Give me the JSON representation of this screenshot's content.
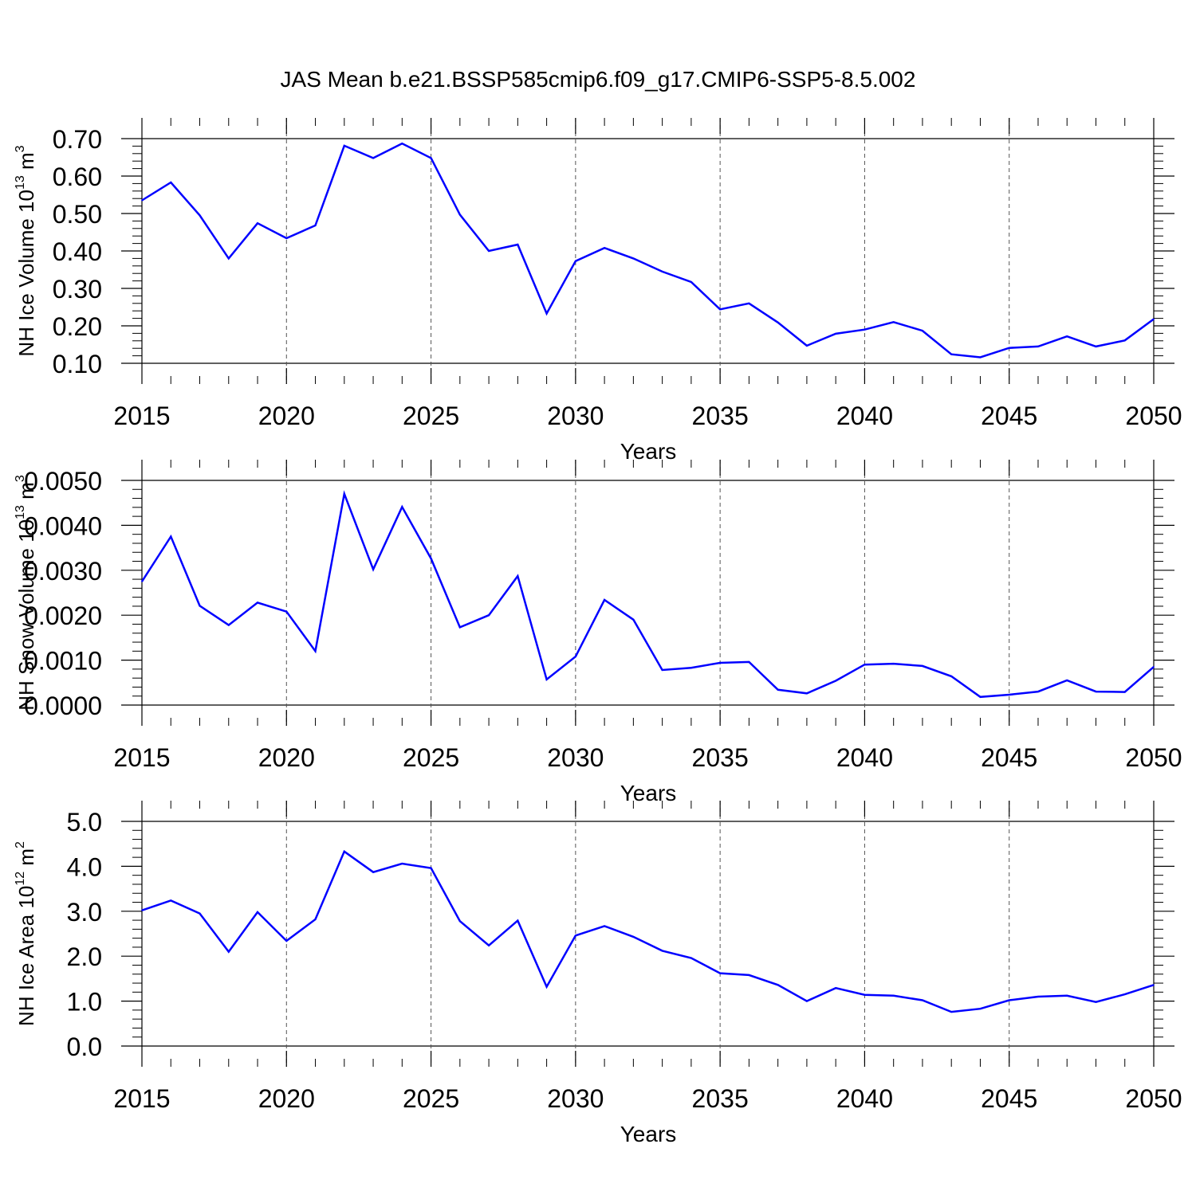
{
  "title": "JAS Mean b.e21.BSSP585cmip6.f09_g17.CMIP6-SSP5-8.5.002",
  "colors": {
    "line": "#0000ff",
    "axes": "#000000",
    "grid": "#555555"
  },
  "chart_data": [
    {
      "type": "line",
      "xlabel": "Years",
      "ylabel": "NH Ice Volume 10^13 m^3",
      "ylabel_parts": {
        "text": "NH Ice Volume 10",
        "sup1": "13",
        "mid": " m",
        "sup2": "3"
      },
      "xlim": [
        2015,
        2050
      ],
      "ylim": [
        0.1,
        0.7
      ],
      "xticks": [
        "2015",
        "2020",
        "2025",
        "2030",
        "2035",
        "2040",
        "2045",
        "2050"
      ],
      "yticks": [
        "0.10",
        "0.20",
        "0.30",
        "0.40",
        "0.50",
        "0.60",
        "0.70"
      ],
      "grid": "vertical dashed at major x ticks",
      "series": [
        {
          "x": [
            2015,
            2016,
            2017,
            2018,
            2019,
            2020,
            2021,
            2022,
            2023,
            2024,
            2025,
            2026,
            2027,
            2028,
            2029,
            2030,
            2031,
            2032,
            2033,
            2034,
            2035,
            2036,
            2037,
            2038,
            2039,
            2040,
            2041,
            2042,
            2043,
            2044,
            2045,
            2046,
            2047,
            2048,
            2049,
            2050
          ],
          "values": [
            0.535,
            0.583,
            0.495,
            0.38,
            0.474,
            0.434,
            0.468,
            0.681,
            0.648,
            0.687,
            0.648,
            0.497,
            0.4,
            0.417,
            0.233,
            0.373,
            0.408,
            0.38,
            0.345,
            0.317,
            0.244,
            0.26,
            0.209,
            0.147,
            0.179,
            0.19,
            0.21,
            0.187,
            0.124,
            0.116,
            0.141,
            0.145,
            0.172,
            0.145,
            0.161,
            0.218
          ]
        }
      ]
    },
    {
      "type": "line",
      "xlabel": "Years",
      "ylabel": "NH Snow Volume 10^13 m^3",
      "ylabel_parts": {
        "text": "NH Snow Volume 10",
        "sup1": "13",
        "mid": " m",
        "sup2": "3"
      },
      "xlim": [
        2015,
        2050
      ],
      "ylim": [
        0.0,
        0.005
      ],
      "xticks": [
        "2015",
        "2020",
        "2025",
        "2030",
        "2035",
        "2040",
        "2045",
        "2050"
      ],
      "yticks": [
        "0.0000",
        "0.0010",
        "0.0020",
        "0.0030",
        "0.0040",
        "0.0050"
      ],
      "grid": "vertical dashed at major x ticks",
      "series": [
        {
          "x": [
            2015,
            2016,
            2017,
            2018,
            2019,
            2020,
            2021,
            2022,
            2023,
            2024,
            2025,
            2026,
            2027,
            2028,
            2029,
            2030,
            2031,
            2032,
            2033,
            2034,
            2035,
            2036,
            2037,
            2038,
            2039,
            2040,
            2041,
            2042,
            2043,
            2044,
            2045,
            2046,
            2047,
            2048,
            2049,
            2050
          ],
          "values": [
            0.00275,
            0.00375,
            0.00221,
            0.00178,
            0.00228,
            0.00208,
            0.0012,
            0.0047,
            0.00302,
            0.00441,
            0.00326,
            0.00173,
            0.002,
            0.00287,
            0.00057,
            0.00108,
            0.00234,
            0.0019,
            0.00078,
            0.00083,
            0.00094,
            0.00096,
            0.00034,
            0.00026,
            0.00054,
            0.0009,
            0.00092,
            0.00087,
            0.00064,
            0.00018,
            0.00023,
            0.0003,
            0.00055,
            0.0003,
            0.00029,
            0.00085
          ]
        }
      ]
    },
    {
      "type": "line",
      "xlabel": "Years",
      "ylabel": "NH Ice Area 10^12 m^2",
      "ylabel_parts": {
        "text": "NH Ice Area 10",
        "sup1": "12",
        "mid": " m",
        "sup2": "2"
      },
      "xlim": [
        2015,
        2050
      ],
      "ylim": [
        0.0,
        5.0
      ],
      "xticks": [
        "2015",
        "2020",
        "2025",
        "2030",
        "2035",
        "2040",
        "2045",
        "2050"
      ],
      "yticks": [
        "0.0",
        "1.0",
        "2.0",
        "3.0",
        "4.0",
        "5.0"
      ],
      "grid": "vertical dashed at major x ticks",
      "series": [
        {
          "x": [
            2015,
            2016,
            2017,
            2018,
            2019,
            2020,
            2021,
            2022,
            2023,
            2024,
            2025,
            2026,
            2027,
            2028,
            2029,
            2030,
            2031,
            2032,
            2033,
            2034,
            2035,
            2036,
            2037,
            2038,
            2039,
            2040,
            2041,
            2042,
            2043,
            2044,
            2045,
            2046,
            2047,
            2048,
            2049,
            2050
          ],
          "values": [
            3.02,
            3.24,
            2.95,
            2.1,
            2.98,
            2.34,
            2.82,
            4.33,
            3.87,
            4.06,
            3.96,
            2.78,
            2.24,
            2.79,
            1.32,
            2.46,
            2.67,
            2.43,
            2.12,
            1.96,
            1.62,
            1.58,
            1.36,
            1.0,
            1.29,
            1.14,
            1.12,
            1.02,
            0.76,
            0.83,
            1.02,
            1.1,
            1.12,
            0.98,
            1.15,
            1.36
          ]
        }
      ]
    }
  ]
}
